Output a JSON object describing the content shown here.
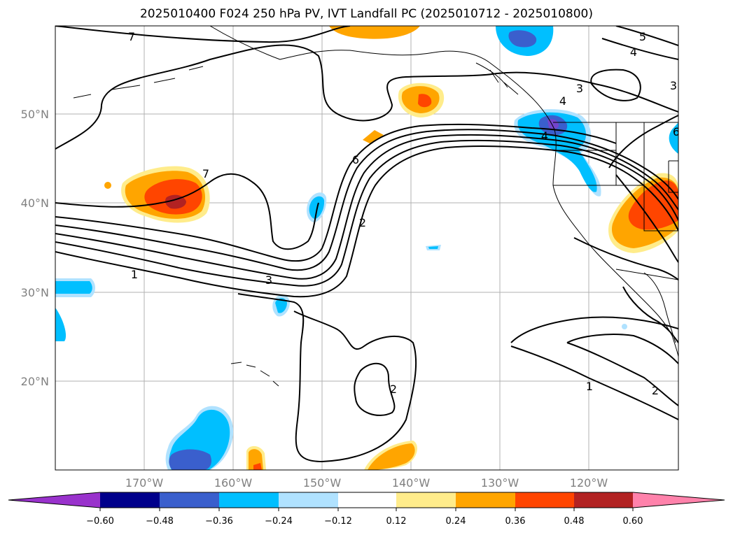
{
  "title": "2025010400 F024 250 hPa PV, IVT Landfall PC (2025010712 - 2025010800)",
  "lon_labels": [
    "170°W",
    "160°W",
    "150°W",
    "140°W",
    "130°W",
    "120°W"
  ],
  "lat_labels": [
    "50°N",
    "40°N",
    "30°N",
    "20°N"
  ],
  "colorbar": {
    "tick_labels": [
      "−0.60",
      "−0.48",
      "−0.36",
      "−0.24",
      "−0.12",
      "0.12",
      "0.24",
      "0.36",
      "0.48",
      "0.60"
    ],
    "colors": [
      "#9932cc",
      "#00008b",
      "#3a5fcd",
      "#00bfff",
      "#b0e2ff",
      "#ffffff",
      "#ffec8b",
      "#ffa500",
      "#ff4500",
      "#b22222",
      "#ff82ab"
    ]
  },
  "contour_labels": [
    "7",
    "7",
    "6",
    "2",
    "1",
    "3",
    "2",
    "1",
    "2",
    "5",
    "4",
    "4",
    "3",
    "4",
    "3",
    "6"
  ]
}
